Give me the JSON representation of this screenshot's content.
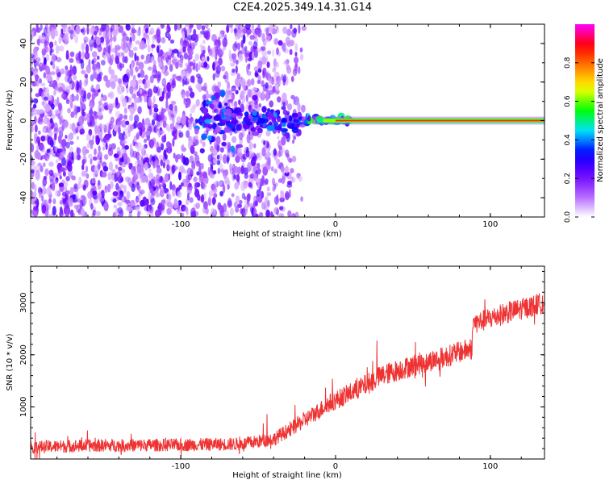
{
  "page_title": "C2E4.2025.349.14.31.G14",
  "chart_data": [
    {
      "type": "heatmap",
      "xlabel": "Height of straight line (km)",
      "ylabel": "Frequency (Hz)",
      "xlim": [
        -197,
        135
      ],
      "ylim": [
        -50,
        50
      ],
      "x_ticks": [
        -100,
        0,
        100
      ],
      "y_ticks": [
        -40,
        -20,
        0,
        20,
        40
      ],
      "colorbar": {
        "label": "Normalized spectral amplitude",
        "range": [
          0,
          1
        ],
        "ticks": [
          "0.0",
          "0.2",
          "0.4",
          "0.6",
          "0.8"
        ],
        "colors": [
          "#ffffff",
          "#b060ff",
          "#6a00ff",
          "#0000ff",
          "#00e0ff",
          "#00ff00",
          "#ffff00",
          "#ff8000",
          "#ff0000",
          "#ff00ff"
        ]
      },
      "description_features": {
        "noise_region_x": [
          -197,
          -45
        ],
        "transition_x": [
          -90,
          10
        ],
        "carrier_frequency": 0,
        "carrier_start_x": 0,
        "carrier_amplitude": 0.85
      }
    },
    {
      "type": "line",
      "xlabel": "Height of straight line (km)",
      "ylabel": "SNR (10 * v/v)",
      "xlim": [
        -197,
        135
      ],
      "ylim": [
        0,
        3700
      ],
      "x_ticks": [
        -100,
        0,
        100
      ],
      "y_ticks": [
        1000,
        2000,
        3000
      ],
      "color": "#ee3333",
      "trend": {
        "x": [
          -197,
          -150,
          -100,
          -60,
          -40,
          -25,
          -12,
          -5,
          5,
          15,
          30,
          50,
          70,
          85,
          88,
          89,
          95,
          110,
          135
        ],
        "y": [
          230,
          260,
          270,
          290,
          380,
          650,
          900,
          1050,
          1200,
          1350,
          1600,
          1800,
          1950,
          2100,
          2100,
          2600,
          2650,
          2800,
          3000
        ]
      },
      "noise_amplitude": 300
    }
  ]
}
